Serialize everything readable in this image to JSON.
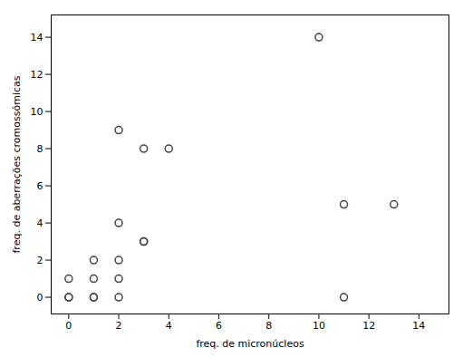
{
  "chart_data": {
    "type": "scatter",
    "x": [
      0,
      0,
      0,
      1,
      1,
      1,
      1,
      2,
      2,
      2,
      2,
      2,
      3,
      3,
      3,
      4,
      10,
      11,
      11,
      13
    ],
    "y": [
      0,
      0,
      1,
      0,
      0,
      1,
      2,
      0,
      1,
      2,
      4,
      9,
      3,
      3,
      8,
      8,
      14,
      0,
      5,
      5
    ],
    "xlabel": "freq. de micronúcleos",
    "ylabel": "freq. de aberrações cromossômicas",
    "xlim": [
      -0.7,
      15.2
    ],
    "ylim": [
      -0.9,
      15.2
    ],
    "xticks": [
      0,
      2,
      4,
      6,
      8,
      10,
      12,
      14
    ],
    "yticks": [
      0,
      2,
      4,
      6,
      8,
      10,
      12,
      14
    ],
    "color": "#444444",
    "marker": "circle",
    "grid": false
  }
}
